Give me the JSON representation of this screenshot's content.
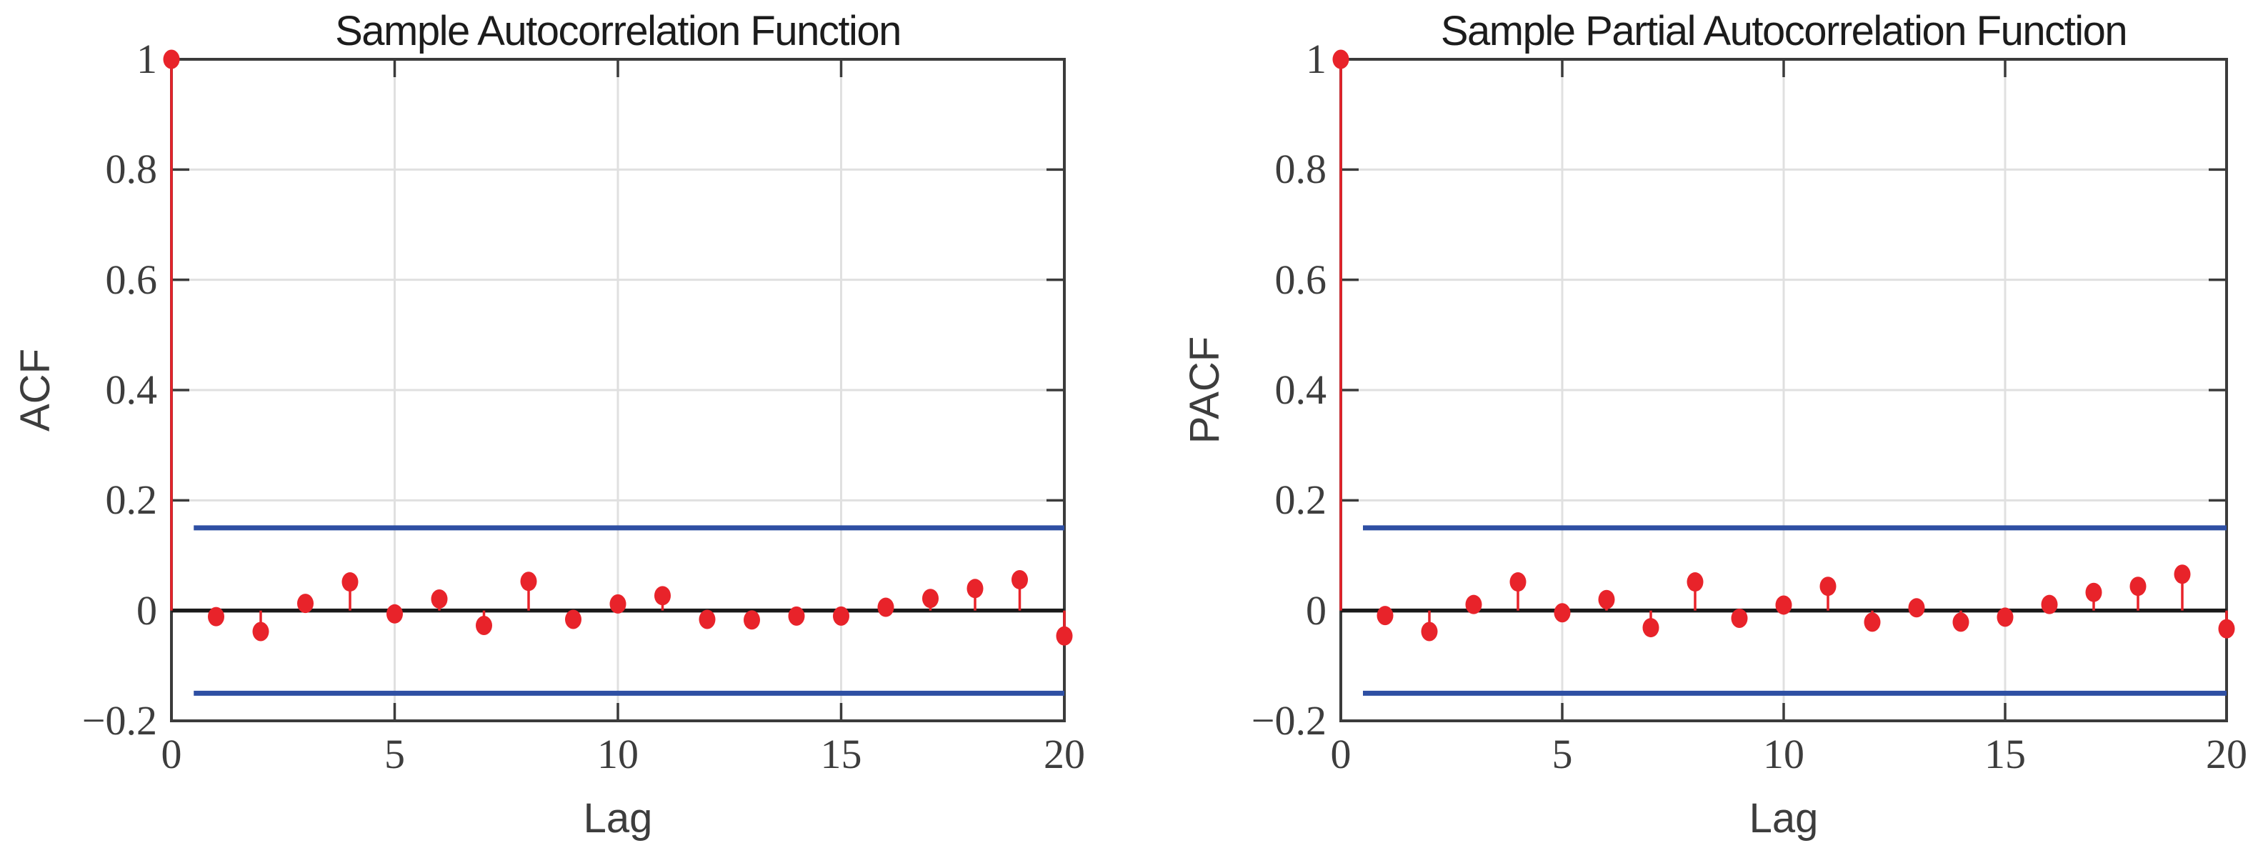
{
  "figure": {
    "background": "#ffffff"
  },
  "colors": {
    "stem_red": "#e8232a",
    "bound_blue": "#2e4fa3",
    "axis_gray": "#3b3b3b",
    "grid_gray": "#e0e0e0",
    "zero_line_black": "#1a1a1a",
    "title_text": "#1c1c1c",
    "tick_text": "#3d3d3d"
  },
  "chart_data": [
    {
      "type": "stem",
      "title": "Sample Autocorrelation Function",
      "xlabel": "Lag",
      "ylabel": "ACF",
      "xlim": [
        0,
        20
      ],
      "ylim": [
        -0.2,
        1
      ],
      "grid": true,
      "legend": "none",
      "xticks": [
        {
          "v": 0,
          "label": "0"
        },
        {
          "v": 5,
          "label": "5"
        },
        {
          "v": 10,
          "label": "10"
        },
        {
          "v": 15,
          "label": "15"
        },
        {
          "v": 20,
          "label": "20"
        }
      ],
      "yticks": [
        {
          "v": 1,
          "label": "1"
        },
        {
          "v": 0.8,
          "label": "0.8"
        },
        {
          "v": 0.6,
          "label": "0.6"
        },
        {
          "v": 0.4,
          "label": "0.4"
        },
        {
          "v": 0.2,
          "label": "0.2"
        },
        {
          "v": 0,
          "label": "0"
        },
        {
          "v": -0.2,
          "label": "−0.2"
        }
      ],
      "confidence_bounds": {
        "upper": 0.15,
        "lower": -0.15,
        "x_start": 0.5,
        "x_end": 20
      },
      "zero_line": 0,
      "lags": [
        0,
        1,
        2,
        3,
        4,
        5,
        6,
        7,
        8,
        9,
        10,
        11,
        12,
        13,
        14,
        15,
        16,
        17,
        18,
        19,
        20
      ],
      "values": [
        1.0,
        -0.011,
        -0.038,
        0.013,
        0.052,
        -0.006,
        0.021,
        -0.027,
        0.053,
        -0.016,
        0.012,
        0.027,
        -0.016,
        -0.017,
        -0.01,
        -0.01,
        0.006,
        0.022,
        0.04,
        0.056,
        -0.046
      ]
    },
    {
      "type": "stem",
      "title": "Sample Partial Autocorrelation Function",
      "xlabel": "Lag",
      "ylabel": "PACF",
      "xlim": [
        0,
        20
      ],
      "ylim": [
        -0.2,
        1
      ],
      "grid": true,
      "legend": "none",
      "xticks": [
        {
          "v": 0,
          "label": "0"
        },
        {
          "v": 5,
          "label": "5"
        },
        {
          "v": 10,
          "label": "10"
        },
        {
          "v": 15,
          "label": "15"
        },
        {
          "v": 20,
          "label": "20"
        }
      ],
      "yticks": [
        {
          "v": 1,
          "label": "1"
        },
        {
          "v": 0.8,
          "label": "0.8"
        },
        {
          "v": 0.6,
          "label": "0.6"
        },
        {
          "v": 0.4,
          "label": "0.4"
        },
        {
          "v": 0.2,
          "label": "0.2"
        },
        {
          "v": 0,
          "label": "0"
        },
        {
          "v": -0.2,
          "label": "−0.2"
        }
      ],
      "confidence_bounds": {
        "upper": 0.15,
        "lower": -0.15,
        "x_start": 0.5,
        "x_end": 20
      },
      "zero_line": 0,
      "lags": [
        0,
        1,
        2,
        3,
        4,
        5,
        6,
        7,
        8,
        9,
        10,
        11,
        12,
        13,
        14,
        15,
        16,
        17,
        18,
        19,
        20
      ],
      "values": [
        1.0,
        -0.009,
        -0.038,
        0.011,
        0.052,
        -0.004,
        0.02,
        -0.031,
        0.052,
        -0.014,
        0.01,
        0.044,
        -0.021,
        0.005,
        -0.021,
        -0.012,
        0.011,
        0.033,
        0.044,
        0.066,
        -0.033
      ]
    }
  ]
}
